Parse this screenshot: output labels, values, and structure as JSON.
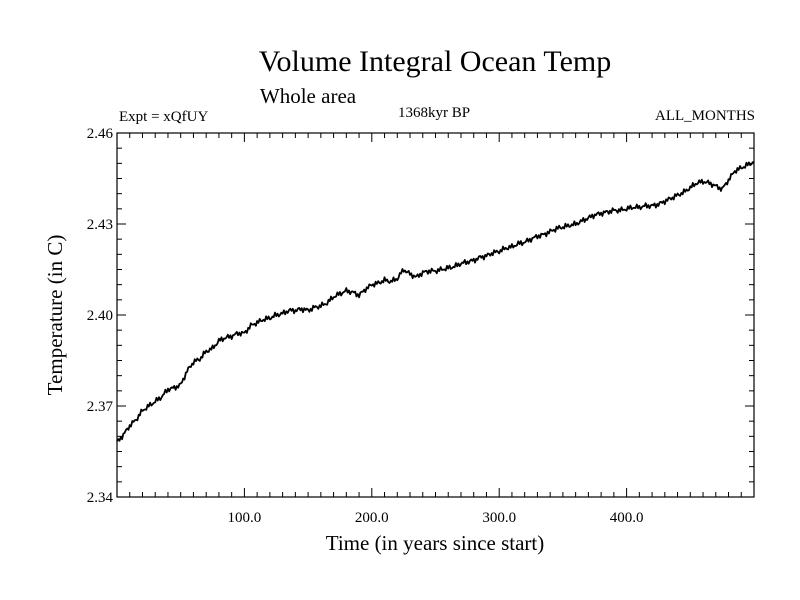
{
  "chart_data": {
    "type": "line",
    "title": "Volume Integral Ocean Temp",
    "subtitle": "Whole area",
    "experiment_label": "Expt = xQfUY",
    "period_label": "1368kyr BP",
    "months_label": "ALL_MONTHS",
    "xlabel": "Time (in years since start)",
    "ylabel": "Temperature (in C)",
    "xlim": [
      0,
      500
    ],
    "ylim": [
      2.34,
      2.46
    ],
    "x_ticks": [
      100,
      200,
      300,
      400
    ],
    "x_tick_labels": [
      "100.0",
      "200.0",
      "300.0",
      "400.0"
    ],
    "y_ticks": [
      2.34,
      2.37,
      2.4,
      2.43,
      2.46
    ],
    "y_tick_labels": [
      "2.34",
      "2.37",
      "2.40",
      "2.43",
      "2.46"
    ],
    "grid": false,
    "series": [
      {
        "name": "Volume integral ocean temperature",
        "x": [
          0,
          5,
          10,
          15,
          20,
          25,
          30,
          35,
          40,
          45,
          50,
          55,
          60,
          65,
          70,
          75,
          80,
          85,
          90,
          95,
          100,
          105,
          110,
          115,
          120,
          125,
          130,
          135,
          140,
          145,
          150,
          155,
          160,
          165,
          170,
          175,
          180,
          185,
          190,
          195,
          200,
          205,
          210,
          215,
          220,
          225,
          230,
          235,
          240,
          245,
          250,
          255,
          260,
          265,
          270,
          275,
          280,
          285,
          290,
          295,
          300,
          305,
          310,
          315,
          320,
          325,
          330,
          335,
          340,
          345,
          350,
          355,
          360,
          365,
          370,
          375,
          380,
          385,
          390,
          395,
          400,
          405,
          410,
          415,
          420,
          425,
          430,
          435,
          440,
          445,
          450,
          455,
          460,
          465,
          470,
          475,
          480,
          485,
          490,
          495,
          500
        ],
        "values": [
          2.358,
          2.3605,
          2.3635,
          2.3655,
          2.3685,
          2.37,
          2.3715,
          2.373,
          2.3755,
          2.376,
          2.377,
          2.3815,
          2.3845,
          2.3855,
          2.388,
          2.389,
          2.3915,
          2.3925,
          2.393,
          2.394,
          2.394,
          2.3965,
          2.3975,
          2.3985,
          2.399,
          2.4,
          2.4005,
          2.4015,
          2.4015,
          2.402,
          2.4015,
          2.4025,
          2.403,
          2.404,
          2.406,
          2.407,
          2.408,
          2.4075,
          2.4065,
          2.4085,
          2.41,
          2.4105,
          2.4115,
          2.411,
          2.412,
          2.415,
          2.4135,
          2.4125,
          2.414,
          2.4145,
          2.4145,
          2.415,
          2.4155,
          2.416,
          2.417,
          2.4175,
          2.418,
          2.419,
          2.4195,
          2.4205,
          2.421,
          2.422,
          2.4225,
          2.4235,
          2.424,
          2.425,
          2.426,
          2.4265,
          2.4275,
          2.4285,
          2.429,
          2.4295,
          2.43,
          2.431,
          2.432,
          2.433,
          2.4335,
          2.434,
          2.4345,
          2.4345,
          2.435,
          2.4355,
          2.4355,
          2.436,
          2.436,
          2.4365,
          2.4375,
          2.4385,
          2.4395,
          2.4405,
          2.442,
          2.4435,
          2.444,
          2.4435,
          2.4425,
          2.4415,
          2.4445,
          2.4475,
          2.4485,
          2.4495,
          2.4505
        ]
      }
    ]
  }
}
